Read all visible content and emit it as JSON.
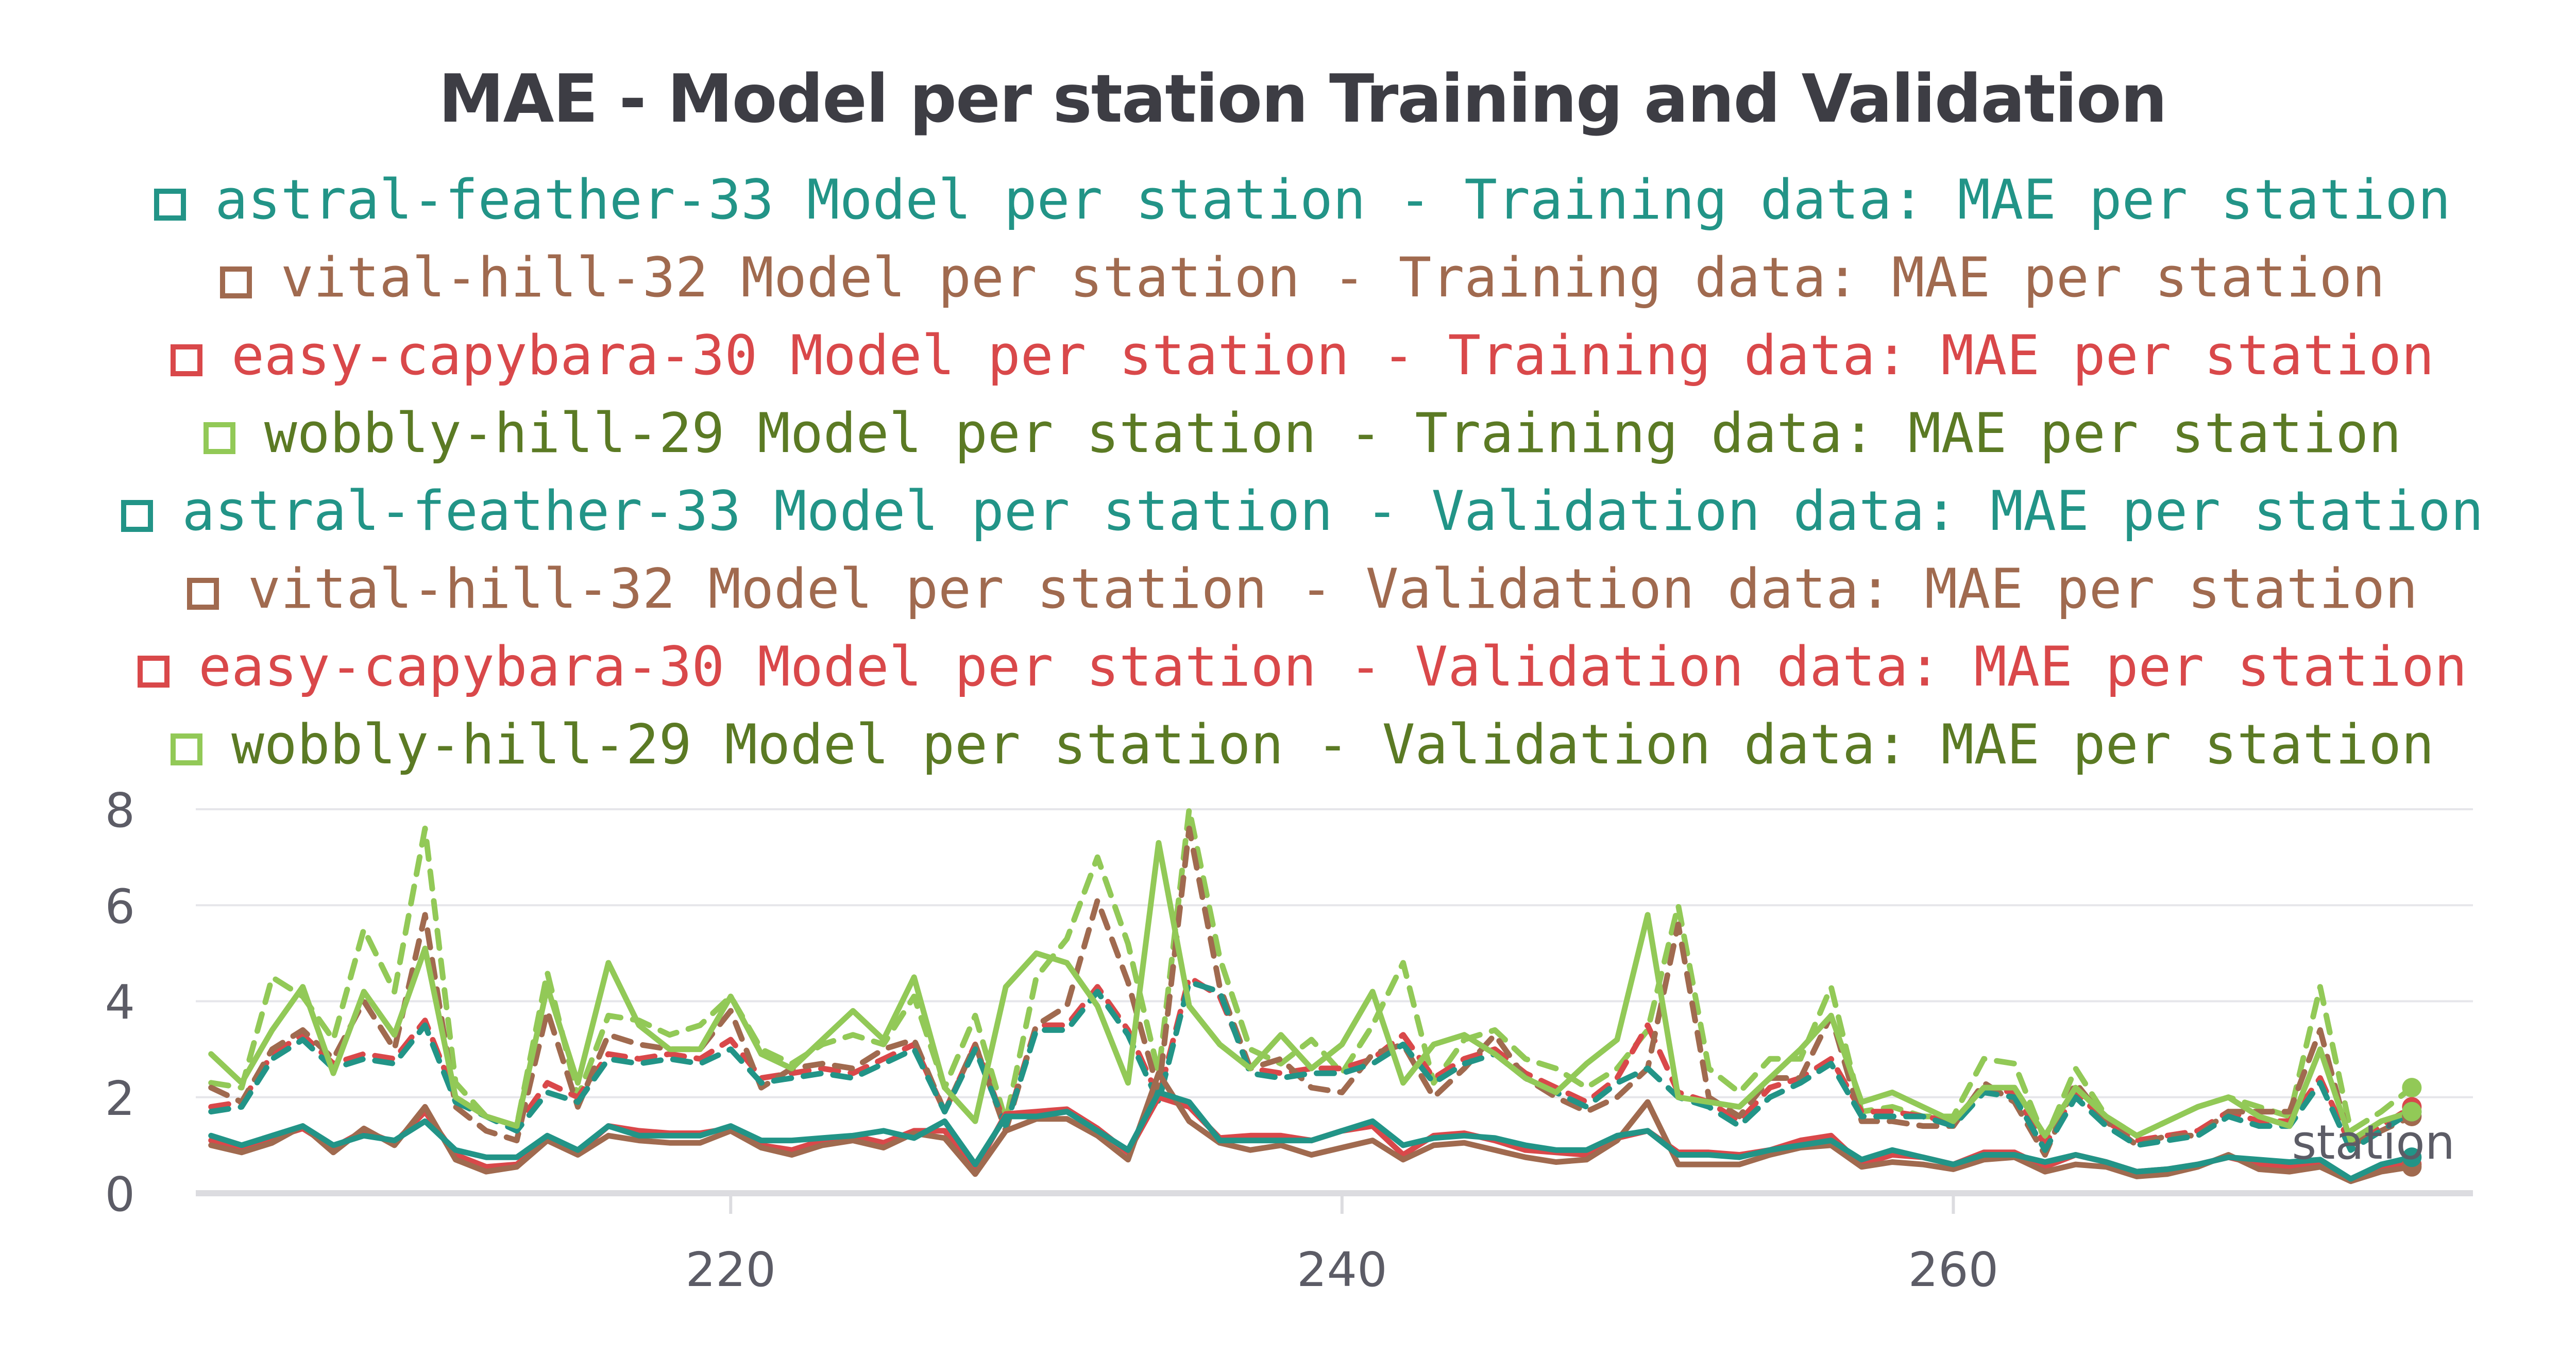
{
  "chart_data": {
    "type": "line",
    "title": "MAE - Model per station Training and Validation",
    "xlabel": "station",
    "ylabel": "",
    "xlim": [
      202.5,
      277
    ],
    "ylim": [
      0,
      8
    ],
    "xticks": [
      220,
      240,
      260
    ],
    "yticks": [
      0,
      2,
      4,
      6,
      8
    ],
    "grid": "horizontal",
    "legend_position": "top",
    "x": [
      203,
      204,
      205,
      206,
      207,
      208,
      209,
      210,
      211,
      212,
      213,
      214,
      215,
      216,
      217,
      218,
      219,
      220,
      221,
      222,
      223,
      224,
      225,
      226,
      227,
      228,
      229,
      230,
      231,
      232,
      233,
      234,
      235,
      236,
      237,
      238,
      239,
      240,
      241,
      242,
      243,
      244,
      245,
      246,
      247,
      248,
      249,
      250,
      251,
      252,
      253,
      254,
      255,
      256,
      257,
      258,
      259,
      260,
      261,
      262,
      263,
      264,
      265,
      266,
      267,
      268,
      269,
      270,
      271,
      272,
      273,
      274,
      275
    ],
    "series": [
      {
        "name": "astral-feather-33 Model per station - Training data: MAE per station",
        "color": "#229487",
        "dash": "solid",
        "values": [
          1.2,
          1.0,
          1.2,
          1.4,
          1.0,
          1.2,
          1.1,
          1.5,
          0.9,
          0.75,
          0.75,
          1.2,
          0.9,
          1.4,
          1.2,
          1.2,
          1.2,
          1.4,
          1.1,
          1.1,
          1.15,
          1.2,
          1.3,
          1.15,
          1.5,
          0.6,
          1.6,
          1.6,
          1.7,
          1.3,
          0.9,
          2.1,
          1.9,
          1.1,
          1.1,
          1.1,
          1.1,
          1.3,
          1.5,
          1.0,
          1.15,
          1.2,
          1.15,
          1.0,
          0.9,
          0.9,
          1.2,
          1.3,
          0.8,
          0.8,
          0.75,
          0.9,
          1.0,
          1.1,
          0.7,
          0.9,
          0.75,
          0.6,
          0.8,
          0.8,
          0.65,
          0.8,
          0.65,
          0.45,
          0.5,
          0.6,
          0.75,
          0.7,
          0.65,
          0.7,
          0.3,
          0.6,
          0.75
        ]
      },
      {
        "name": "vital-hill-32 Model per station - Training data: MAE per station",
        "color": "#a06a4f",
        "dash": "solid",
        "values": [
          1.0,
          0.85,
          1.05,
          1.4,
          0.85,
          1.35,
          1.0,
          1.8,
          0.7,
          0.45,
          0.55,
          1.1,
          0.8,
          1.2,
          1.1,
          1.05,
          1.05,
          1.3,
          0.95,
          0.8,
          1.0,
          1.1,
          0.95,
          1.25,
          1.15,
          0.4,
          1.3,
          1.55,
          1.55,
          1.2,
          0.7,
          2.5,
          1.5,
          1.05,
          0.9,
          1.0,
          0.8,
          0.95,
          1.1,
          0.7,
          1.0,
          1.05,
          0.9,
          0.75,
          0.65,
          0.7,
          1.1,
          1.9,
          0.6,
          0.6,
          0.6,
          0.8,
          0.95,
          1.0,
          0.55,
          0.65,
          0.6,
          0.5,
          0.7,
          0.75,
          0.45,
          0.6,
          0.55,
          0.35,
          0.4,
          0.55,
          0.8,
          0.5,
          0.45,
          0.55,
          0.25,
          0.45,
          0.55
        ]
      },
      {
        "name": "easy-capybara-30 Model per station - Training data: MAE per station",
        "color": "#d9484a",
        "dash": "solid",
        "values": [
          1.1,
          0.95,
          1.15,
          1.35,
          0.95,
          1.3,
          1.05,
          1.7,
          0.8,
          0.55,
          0.6,
          1.1,
          0.85,
          1.4,
          1.3,
          1.25,
          1.25,
          1.35,
          1.0,
          0.9,
          1.1,
          1.2,
          1.05,
          1.3,
          1.3,
          0.5,
          1.65,
          1.7,
          1.75,
          1.35,
          0.85,
          2.0,
          1.8,
          1.15,
          1.2,
          1.2,
          1.1,
          1.3,
          1.4,
          0.8,
          1.2,
          1.25,
          1.1,
          0.9,
          0.85,
          0.8,
          1.15,
          1.3,
          0.85,
          0.85,
          0.8,
          0.9,
          1.1,
          1.2,
          0.6,
          0.8,
          0.75,
          0.6,
          0.85,
          0.85,
          0.55,
          0.8,
          0.65,
          0.45,
          0.5,
          0.6,
          0.75,
          0.6,
          0.55,
          0.6,
          0.3,
          0.55,
          0.6
        ]
      },
      {
        "name": "wobbly-hill-29 Model per station - Training data: MAE per station",
        "color": "#92c957",
        "dash": "solid",
        "values": [
          2.9,
          2.3,
          3.4,
          4.3,
          2.5,
          4.2,
          3.3,
          5.1,
          2.0,
          1.6,
          1.4,
          4.3,
          2.3,
          4.8,
          3.5,
          3.0,
          3.0,
          4.1,
          2.9,
          2.6,
          3.2,
          3.8,
          3.2,
          4.5,
          2.2,
          1.5,
          4.3,
          5.0,
          4.8,
          3.9,
          2.3,
          7.3,
          3.9,
          3.1,
          2.6,
          3.3,
          2.6,
          3.1,
          4.2,
          2.3,
          3.1,
          3.3,
          2.9,
          2.4,
          2.1,
          2.7,
          3.2,
          5.8,
          2.0,
          1.9,
          1.8,
          2.4,
          3.0,
          3.7,
          1.9,
          2.1,
          1.8,
          1.5,
          2.2,
          2.2,
          1.2,
          2.2,
          1.6,
          1.2,
          1.5,
          1.8,
          2.0,
          1.6,
          1.4,
          3.0,
          1.1,
          1.5,
          1.7
        ]
      },
      {
        "name": "astral-feather-33 Model per station - Validation data: MAE per station",
        "color": "#229487",
        "dash": "dashed",
        "values": [
          1.7,
          1.8,
          2.8,
          3.2,
          2.6,
          2.8,
          2.7,
          3.5,
          1.9,
          1.6,
          1.3,
          2.1,
          1.9,
          2.8,
          2.7,
          2.8,
          2.7,
          3.0,
          2.3,
          2.4,
          2.5,
          2.4,
          2.7,
          3.0,
          1.7,
          3.0,
          1.4,
          3.4,
          3.4,
          4.2,
          3.3,
          1.9,
          4.4,
          4.2,
          2.5,
          2.4,
          2.5,
          2.5,
          2.7,
          3.1,
          2.3,
          2.7,
          2.9,
          2.4,
          2.1,
          1.8,
          2.3,
          2.6,
          2.0,
          1.8,
          1.4,
          2.0,
          2.3,
          2.7,
          1.6,
          1.6,
          1.6,
          1.4,
          2.1,
          2.0,
          0.9,
          2.0,
          1.4,
          1.0,
          1.1,
          1.2,
          1.6,
          1.4,
          1.4,
          2.3,
          0.9,
          1.3,
          1.7
        ]
      },
      {
        "name": "vital-hill-32 Model per station - Validation data: MAE per station",
        "color": "#a06a4f",
        "dash": "dashed",
        "values": [
          2.2,
          1.9,
          3.0,
          3.4,
          2.8,
          4.0,
          3.0,
          5.8,
          1.8,
          1.3,
          1.1,
          3.8,
          1.8,
          3.3,
          3.1,
          3.0,
          3.0,
          3.8,
          2.2,
          2.6,
          2.7,
          2.6,
          3.0,
          3.2,
          1.7,
          3.1,
          1.3,
          3.5,
          3.9,
          6.1,
          4.4,
          2.1,
          7.6,
          4.3,
          2.6,
          2.8,
          2.2,
          2.1,
          2.9,
          3.1,
          2.0,
          2.6,
          3.3,
          2.4,
          2.0,
          1.7,
          2.0,
          2.6,
          5.6,
          2.0,
          1.6,
          2.4,
          2.4,
          3.7,
          1.5,
          1.5,
          1.4,
          1.4,
          2.3,
          1.9,
          0.8,
          2.3,
          1.5,
          1.0,
          1.2,
          1.2,
          1.7,
          1.7,
          1.7,
          3.4,
          1.0,
          1.3,
          1.6
        ]
      },
      {
        "name": "easy-capybara-30 Model per station - Validation data: MAE per station",
        "color": "#d9484a",
        "dash": "dashed",
        "values": [
          1.8,
          1.9,
          2.9,
          3.3,
          2.7,
          2.9,
          2.8,
          3.6,
          2.0,
          1.6,
          1.4,
          2.3,
          2.0,
          2.9,
          2.8,
          2.9,
          2.8,
          3.2,
          2.4,
          2.5,
          2.6,
          2.5,
          2.8,
          3.1,
          1.7,
          3.1,
          1.4,
          3.5,
          3.5,
          4.3,
          3.4,
          2.0,
          4.5,
          4.1,
          2.6,
          2.5,
          2.6,
          2.6,
          2.8,
          3.3,
          2.4,
          2.8,
          3.0,
          2.5,
          2.2,
          1.9,
          2.4,
          3.5,
          2.1,
          1.9,
          1.5,
          2.2,
          2.4,
          2.8,
          1.7,
          1.7,
          1.6,
          1.5,
          2.2,
          2.1,
          1.0,
          2.1,
          1.5,
          1.1,
          1.2,
          1.3,
          1.7,
          1.5,
          1.5,
          2.4,
          1.0,
          1.4,
          1.8
        ]
      },
      {
        "name": "wobbly-hill-29 Model per station - Validation data: MAE per station",
        "color": "#92c957",
        "dash": "dashed",
        "values": [
          2.3,
          2.2,
          4.5,
          4.1,
          3.2,
          5.5,
          4.2,
          7.6,
          2.3,
          1.6,
          1.4,
          4.6,
          2.0,
          3.7,
          3.6,
          3.3,
          3.5,
          4.1,
          3.0,
          2.7,
          3.1,
          3.3,
          3.1,
          4.1,
          2.2,
          3.7,
          1.5,
          4.5,
          5.3,
          7.0,
          5.2,
          2.5,
          8.0,
          4.9,
          3.0,
          2.7,
          3.2,
          2.5,
          3.5,
          4.8,
          2.3,
          3.2,
          3.4,
          2.8,
          2.6,
          2.2,
          2.6,
          3.4,
          6.0,
          2.6,
          2.1,
          2.8,
          2.8,
          4.3,
          1.7,
          1.8,
          1.6,
          1.6,
          2.8,
          2.7,
          1.1,
          2.6,
          1.6,
          1.2,
          1.5,
          1.8,
          2.0,
          1.8,
          1.6,
          4.3,
          1.3,
          1.7,
          2.2
        ]
      }
    ]
  }
}
